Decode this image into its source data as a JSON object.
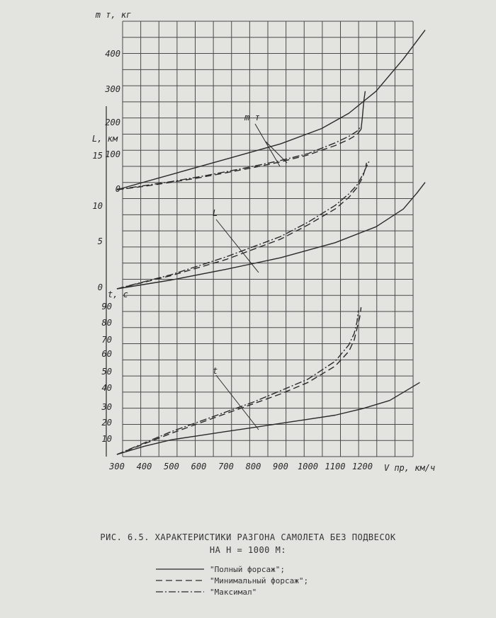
{
  "chart_data": {
    "type": "line",
    "x_values": [
      300,
      400,
      500,
      600,
      700,
      800,
      900,
      1000,
      1100,
      1200
    ],
    "x_tick_labels": [
      "300",
      "400",
      "500",
      "600",
      "700",
      "800",
      "900",
      "1000",
      "1100",
      "1200"
    ],
    "x_axis_label": "V пр, км/ч",
    "panels": [
      {
        "id": "fuel",
        "axis_label": "m т, кг",
        "curve_label": "m т",
        "ticks": [
          "0",
          "100",
          "200",
          "300",
          "400"
        ],
        "ylim": [
          0,
          470
        ],
        "series": [
          {
            "style": "solid",
            "x": [
              300,
              500,
              700,
              900,
              1050,
              1150,
              1250,
              1350,
              1430
            ],
            "y": [
              0,
              45,
              90,
              135,
              180,
              225,
              290,
              385,
              470
            ]
          },
          {
            "style": "dashed",
            "x": [
              300,
              400,
              500,
              600,
              700,
              800,
              900,
              1000,
              1100,
              1150,
              1180,
              1195
            ],
            "y": [
              0,
              10,
              22,
              35,
              50,
              65,
              82,
              102,
              130,
              148,
              162,
              178
            ]
          },
          {
            "style": "dashdot",
            "x": [
              300,
              400,
              500,
              600,
              700,
              800,
              900,
              1000,
              1100,
              1150,
              1180,
              1190
            ],
            "y": [
              0,
              12,
              24,
              38,
              53,
              69,
              86,
              106,
              138,
              157,
              172,
              182
            ]
          },
          {
            "style": "solid",
            "x": [
              1195,
              1200,
              1205,
              1210
            ],
            "y": [
              178,
              215,
              260,
              290
            ]
          }
        ]
      },
      {
        "id": "distance",
        "axis_label": "L, км",
        "curve_label": "L",
        "ticks": [
          "0",
          "5",
          "10",
          "15"
        ],
        "ylim": [
          0,
          16
        ],
        "series": [
          {
            "style": "solid",
            "x": [
              300,
              500,
              700,
              900,
              1100,
              1250,
              1350,
              1400,
              1430
            ],
            "y": [
              0,
              1.0,
              2.2,
              3.5,
              5.2,
              7.0,
              9.0,
              10.8,
              12.0
            ]
          },
          {
            "style": "dashed",
            "x": [
              300,
              500,
              700,
              900,
              1000,
              1100,
              1150,
              1180,
              1200,
              1210,
              1215
            ],
            "y": [
              0,
              1.5,
              3.3,
              5.6,
              7.2,
              9.0,
              10.3,
              11.4,
              12.5,
              13.5,
              14.2
            ]
          },
          {
            "style": "dashdot",
            "x": [
              300,
              500,
              700,
              900,
              1000,
              1100,
              1150,
              1180,
              1200,
              1215,
              1225
            ],
            "y": [
              0,
              1.6,
              3.6,
              5.9,
              7.5,
              9.4,
              10.7,
              11.7,
              12.8,
              13.8,
              14.4
            ]
          }
        ]
      },
      {
        "id": "time",
        "axis_label": "t, с",
        "curve_label": "t",
        "ticks": [
          "10",
          "20",
          "30",
          "40",
          "50",
          "60",
          "70",
          "80",
          "90"
        ],
        "ylim": [
          0,
          95
        ],
        "series": [
          {
            "style": "solid",
            "x": [
              300,
              400,
              500,
              600,
              700,
              800,
              900,
              1000,
              1100,
              1200,
              1300,
              1350,
              1410
            ],
            "y": [
              0,
              5,
              9,
              11.5,
              14,
              16.5,
              19,
              21.5,
              24,
              28,
              33,
              38,
              44
            ]
          },
          {
            "style": "dashed",
            "x": [
              300,
              400,
              500,
              600,
              700,
              800,
              900,
              1000,
              1100,
              1150,
              1170,
              1180,
              1190,
              1195
            ],
            "y": [
              0,
              6.5,
              13,
              19,
              25,
              31,
              37,
              44,
              54,
              63,
              70,
              77,
              84,
              90
            ]
          },
          {
            "style": "dashdot",
            "x": [
              300,
              400,
              500,
              600,
              700,
              800,
              900,
              1000,
              1100,
              1150,
              1170,
              1180,
              1185
            ],
            "y": [
              0,
              7,
              14,
              20,
              26,
              32,
              39,
              46,
              57,
              67,
              74,
              81,
              88
            ]
          }
        ]
      }
    ],
    "legend": [
      {
        "style": "solid",
        "label": "\"Полный форсаж\";"
      },
      {
        "style": "dashed",
        "label": "\"Минимальный форсаж\";"
      },
      {
        "style": "dashdot",
        "label": "\"Максимал\""
      }
    ]
  },
  "caption": {
    "line1": "РИС. 6.5. ХАРАКТЕРИСТИКИ РАЗГОНА САМОЛЕТА БЕЗ ПОДВЕСОК",
    "line2": "НА Н = 1000 М:"
  },
  "colors": {
    "ink": "#2a2a2a",
    "grid": "#4a4a4a",
    "paper": "#e3e4df"
  }
}
